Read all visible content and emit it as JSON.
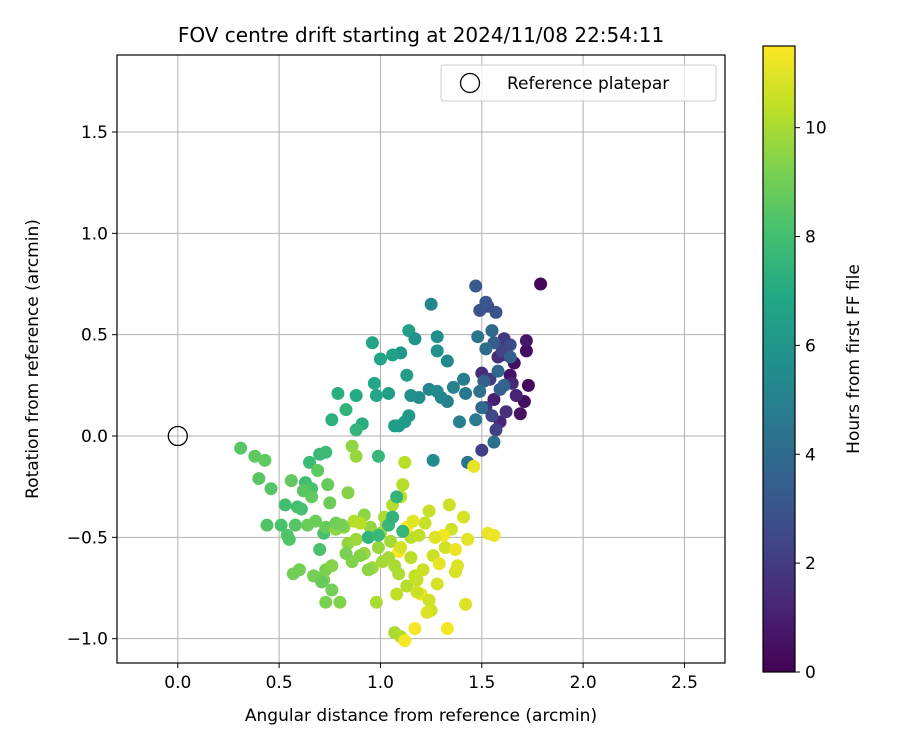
{
  "chart_data": {
    "type": "scatter",
    "title": "FOV centre drift starting at 2024/11/08 22:54:11",
    "xlabel": "Angular distance from reference (arcmin)",
    "ylabel": "Rotation from reference (arcmin)",
    "xlim": [
      -0.3,
      2.7
    ],
    "ylim": [
      -1.12,
      1.88
    ],
    "x_ticks": [
      0.0,
      0.5,
      1.0,
      1.5,
      2.0,
      2.5
    ],
    "x_tick_labels": [
      "0.0",
      "0.5",
      "1.0",
      "1.5",
      "2.0",
      "2.5"
    ],
    "y_ticks": [
      -1.0,
      -0.5,
      0.0,
      0.5,
      1.0,
      1.5
    ],
    "y_tick_labels": [
      "−1.0",
      "−0.5",
      "0.0",
      "0.5",
      "1.0",
      "1.5"
    ],
    "grid": true,
    "legend": {
      "placement": "upper-right",
      "entries": [
        "Reference platepar"
      ]
    },
    "reference_point": {
      "x": 0.0,
      "y": 0.0,
      "label": "Reference platepar"
    },
    "colorbar": {
      "label": "Hours from first FF file",
      "colormap": "viridis",
      "range": [
        0,
        11.5
      ],
      "ticks": [
        0,
        2,
        4,
        6,
        8,
        10
      ],
      "tick_labels": [
        "0",
        "2",
        "4",
        "6",
        "8",
        "10"
      ]
    },
    "series": [
      {
        "points": [
          [
            1.79,
            0.75,
            0.2
          ],
          [
            1.73,
            0.25,
            0.3
          ],
          [
            1.71,
            0.17,
            0.4
          ],
          [
            1.72,
            0.42,
            0.4
          ],
          [
            1.66,
            0.36,
            0.5
          ],
          [
            1.64,
            0.3,
            0.6
          ],
          [
            1.69,
            0.11,
            0.6
          ],
          [
            1.72,
            0.47,
            0.7
          ],
          [
            1.6,
            0.4,
            0.8
          ],
          [
            1.62,
            0.44,
            0.9
          ],
          [
            1.56,
            0.18,
            1.0
          ],
          [
            1.67,
            0.2,
            1.1
          ],
          [
            1.59,
            0.07,
            1.2
          ],
          [
            1.65,
            0.26,
            1.3
          ],
          [
            1.5,
            0.31,
            1.4
          ],
          [
            1.58,
            0.39,
            1.5
          ],
          [
            1.62,
            0.12,
            1.6
          ],
          [
            1.52,
            0.14,
            1.8
          ],
          [
            1.61,
            0.48,
            1.9
          ],
          [
            1.54,
            0.28,
            2.0
          ],
          [
            1.5,
            -0.07,
            2.1
          ],
          [
            1.57,
            0.03,
            2.2
          ],
          [
            1.6,
            0.42,
            2.3
          ],
          [
            1.55,
            0.1,
            2.5
          ],
          [
            1.64,
            0.45,
            2.6
          ],
          [
            1.53,
            0.64,
            2.7
          ],
          [
            1.49,
            0.62,
            2.9
          ],
          [
            1.57,
            0.61,
            3.0
          ],
          [
            1.52,
            0.66,
            3.1
          ],
          [
            1.47,
            0.74,
            3.2
          ],
          [
            1.59,
            0.23,
            3.3
          ],
          [
            1.56,
            0.46,
            3.4
          ],
          [
            1.64,
            0.39,
            3.5
          ],
          [
            1.51,
            0.27,
            3.6
          ],
          [
            1.61,
            0.25,
            3.7
          ],
          [
            1.58,
            0.32,
            3.8
          ],
          [
            1.55,
            0.52,
            3.9
          ],
          [
            1.5,
            0.14,
            4.0
          ],
          [
            1.52,
            0.43,
            4.1
          ],
          [
            1.56,
            -0.03,
            4.2
          ],
          [
            1.49,
            0.22,
            4.3
          ],
          [
            1.43,
            -0.13,
            4.4
          ],
          [
            1.48,
            0.49,
            4.5
          ],
          [
            1.42,
            0.21,
            4.6
          ],
          [
            1.47,
            0.08,
            4.7
          ],
          [
            1.41,
            0.28,
            4.8
          ],
          [
            1.33,
            0.17,
            4.9
          ],
          [
            1.39,
            0.07,
            5.0
          ],
          [
            1.36,
            0.24,
            5.1
          ],
          [
            1.3,
            0.19,
            5.2
          ],
          [
            1.24,
            0.23,
            5.3
          ],
          [
            1.28,
            0.22,
            5.4
          ],
          [
            1.19,
            0.19,
            5.5
          ],
          [
            1.26,
            -0.12,
            5.6
          ],
          [
            1.15,
            0.2,
            5.7
          ],
          [
            1.28,
            0.42,
            5.8
          ],
          [
            1.1,
            0.41,
            5.9
          ],
          [
            1.14,
            0.1,
            6.0
          ],
          [
            1.09,
            0.05,
            6.1
          ],
          [
            1.12,
            0.07,
            6.2
          ],
          [
            1.07,
            0.05,
            6.3
          ],
          [
            1.13,
            0.3,
            6.4
          ],
          [
            1.06,
            0.4,
            6.5
          ],
          [
            1.14,
            0.52,
            6.5
          ],
          [
            1.0,
            0.38,
            6.6
          ],
          [
            0.96,
            0.46,
            6.7
          ],
          [
            0.98,
            0.2,
            6.8
          ],
          [
            0.97,
            0.26,
            6.9
          ],
          [
            0.88,
            0.2,
            7.0
          ],
          [
            0.91,
            0.06,
            7.1
          ],
          [
            0.79,
            0.21,
            7.2
          ],
          [
            0.76,
            0.08,
            7.3
          ],
          [
            0.83,
            0.13,
            7.4
          ],
          [
            0.88,
            0.03,
            7.5
          ],
          [
            0.99,
            -0.1,
            7.6
          ],
          [
            1.25,
            0.65,
            5.3
          ],
          [
            1.33,
            0.37,
            5.4
          ],
          [
            1.28,
            0.49,
            5.6
          ],
          [
            1.17,
            0.48,
            5.8
          ],
          [
            1.04,
            0.21,
            6.4
          ],
          [
            0.7,
            -0.09,
            7.7
          ],
          [
            0.73,
            -0.08,
            7.8
          ],
          [
            0.65,
            -0.13,
            7.8
          ],
          [
            0.63,
            -0.23,
            7.9
          ],
          [
            0.59,
            -0.35,
            8.0
          ],
          [
            0.53,
            -0.34,
            8.0
          ],
          [
            0.61,
            -0.36,
            8.1
          ],
          [
            0.72,
            -0.48,
            8.1
          ],
          [
            0.66,
            -0.26,
            8.2
          ],
          [
            0.7,
            -0.56,
            8.2
          ],
          [
            0.44,
            -0.44,
            8.3
          ],
          [
            0.54,
            -0.49,
            8.3
          ],
          [
            0.58,
            -0.44,
            8.4
          ],
          [
            0.46,
            -0.26,
            8.4
          ],
          [
            0.4,
            -0.21,
            8.5
          ],
          [
            0.31,
            -0.06,
            8.5
          ],
          [
            0.38,
            -0.1,
            8.6
          ],
          [
            0.43,
            -0.12,
            8.6
          ],
          [
            0.56,
            -0.22,
            8.7
          ],
          [
            0.66,
            -0.3,
            8.7
          ],
          [
            0.73,
            -0.45,
            8.8
          ],
          [
            0.74,
            -0.24,
            8.8
          ],
          [
            0.68,
            -0.42,
            8.9
          ],
          [
            0.64,
            -0.44,
            8.9
          ],
          [
            0.57,
            -0.68,
            9.0
          ],
          [
            0.6,
            -0.66,
            9.0
          ],
          [
            0.67,
            -0.69,
            9.1
          ],
          [
            0.7,
            -0.7,
            9.1
          ],
          [
            0.73,
            -0.66,
            9.2
          ],
          [
            0.73,
            -0.82,
            9.2
          ],
          [
            0.8,
            -0.82,
            9.3
          ],
          [
            0.72,
            -0.71,
            9.3
          ],
          [
            0.76,
            -0.64,
            9.4
          ],
          [
            0.84,
            -0.28,
            9.4
          ],
          [
            0.82,
            -0.45,
            9.5
          ],
          [
            0.78,
            -0.46,
            9.5
          ],
          [
            0.86,
            -0.05,
            9.6
          ],
          [
            0.84,
            -0.53,
            9.6
          ],
          [
            0.92,
            -0.58,
            9.7
          ],
          [
            0.88,
            -0.1,
            9.7
          ],
          [
            0.88,
            -0.51,
            9.8
          ],
          [
            0.96,
            -0.65,
            9.8
          ],
          [
            1.01,
            -0.62,
            9.9
          ],
          [
            1.05,
            -0.52,
            9.9
          ],
          [
            0.98,
            -0.82,
            10.0
          ],
          [
            1.07,
            -0.97,
            10.0
          ],
          [
            1.03,
            -0.43,
            10.1
          ],
          [
            1.1,
            -0.99,
            10.1
          ],
          [
            1.11,
            -0.24,
            10.2
          ],
          [
            1.12,
            -0.13,
            10.3
          ],
          [
            1.15,
            -0.5,
            10.3
          ],
          [
            1.17,
            -0.69,
            10.4
          ],
          [
            1.19,
            -0.49,
            10.4
          ],
          [
            1.22,
            -0.43,
            10.5
          ],
          [
            1.24,
            -0.37,
            10.5
          ],
          [
            1.25,
            -0.86,
            10.6
          ],
          [
            1.26,
            -0.59,
            10.6
          ],
          [
            1.32,
            -0.55,
            10.7
          ],
          [
            1.35,
            -0.46,
            10.7
          ],
          [
            1.37,
            -0.67,
            10.8
          ],
          [
            1.41,
            -0.4,
            10.8
          ],
          [
            1.42,
            -0.83,
            10.9
          ],
          [
            1.38,
            -0.64,
            10.9
          ],
          [
            1.43,
            -0.51,
            11.0
          ],
          [
            1.46,
            -0.15,
            11.1
          ],
          [
            1.53,
            -0.48,
            11.1
          ],
          [
            1.56,
            -0.49,
            11.2
          ],
          [
            1.37,
            -0.56,
            11.2
          ],
          [
            1.31,
            -0.49,
            11.3
          ],
          [
            1.33,
            -0.95,
            11.3
          ],
          [
            1.17,
            -0.95,
            11.4
          ],
          [
            1.12,
            -1.01,
            11.4
          ],
          [
            1.09,
            -0.57,
            11.5
          ],
          [
            1.13,
            -0.45,
            11.5
          ],
          [
            1.2,
            -0.78,
            11.2
          ],
          [
            0.92,
            -0.39,
            9.5
          ],
          [
            0.95,
            -0.45,
            9.6
          ],
          [
            1.0,
            -0.48,
            9.8
          ],
          [
            1.04,
            -0.6,
            9.9
          ],
          [
            1.07,
            -0.64,
            10.0
          ],
          [
            1.09,
            -0.68,
            10.1
          ],
          [
            1.13,
            -0.74,
            10.2
          ],
          [
            1.15,
            -0.6,
            10.3
          ],
          [
            1.18,
            -0.71,
            10.5
          ],
          [
            1.21,
            -0.66,
            10.6
          ],
          [
            1.24,
            -0.81,
            10.7
          ],
          [
            1.28,
            -0.73,
            10.8
          ],
          [
            1.02,
            -0.4,
            10.0
          ],
          [
            1.06,
            -0.34,
            10.2
          ],
          [
            1.1,
            -0.3,
            10.3
          ],
          [
            0.9,
            -0.59,
            9.4
          ],
          [
            0.86,
            -0.62,
            9.3
          ],
          [
            0.83,
            -0.58,
            9.2
          ],
          [
            0.94,
            -0.66,
            9.5
          ],
          [
            0.99,
            -0.55,
            9.7
          ],
          [
            0.81,
            -0.44,
            9.1
          ],
          [
            0.78,
            -0.43,
            9.0
          ],
          [
            0.75,
            -0.33,
            8.9
          ],
          [
            0.69,
            -0.17,
            8.6
          ],
          [
            0.62,
            -0.27,
            8.5
          ],
          [
            0.51,
            -0.44,
            8.2
          ],
          [
            0.55,
            -0.51,
            8.3
          ],
          [
            1.04,
            -0.44,
            7.6
          ],
          [
            1.08,
            -0.3,
            7.5
          ],
          [
            1.06,
            -0.4,
            7.4
          ],
          [
            0.94,
            -0.5,
            7.4
          ],
          [
            1.11,
            -0.47,
            7.6
          ],
          [
            0.99,
            -0.49,
            7.7
          ],
          [
            0.71,
            -0.72,
            8.8
          ],
          [
            0.76,
            -0.76,
            9.0
          ],
          [
            0.87,
            -0.42,
            10.2
          ],
          [
            0.9,
            -0.43,
            10.3
          ],
          [
            1.08,
            -0.78,
            10.4
          ],
          [
            1.18,
            -0.77,
            10.6
          ],
          [
            1.23,
            -0.87,
            10.9
          ],
          [
            1.1,
            -0.55,
            10.8
          ],
          [
            1.16,
            -0.42,
            11.0
          ],
          [
            1.29,
            -0.63,
            11.1
          ],
          [
            1.27,
            -0.5,
            10.9
          ],
          [
            1.34,
            -0.34,
            10.6
          ]
        ]
      }
    ]
  }
}
